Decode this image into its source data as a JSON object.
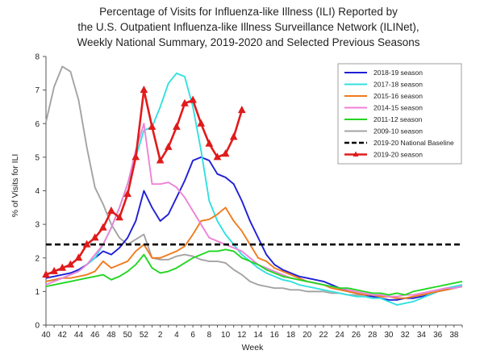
{
  "chart_data": {
    "type": "line",
    "title_lines": [
      "Percentage of Visits for Influenza-like Illness (ILI) Reported by",
      "the U.S. Outpatient Influenza-like Illness Surveillance Network (ILINet),",
      "Weekly National Summary, 2019-2020 and Selected Previous Seasons"
    ],
    "xlabel": "Week",
    "ylabel": "% of Visits for ILI",
    "ylim": [
      0,
      8
    ],
    "yticks": [
      "0",
      "1",
      "2",
      "3",
      "4",
      "5",
      "6",
      "7",
      "8"
    ],
    "x_categories": [
      "40",
      "41",
      "42",
      "43",
      "44",
      "45",
      "46",
      "47",
      "48",
      "49",
      "50",
      "51",
      "52",
      "1",
      "2",
      "3",
      "4",
      "5",
      "6",
      "7",
      "8",
      "9",
      "10",
      "11",
      "12",
      "13",
      "14",
      "15",
      "16",
      "17",
      "18",
      "19",
      "20",
      "21",
      "22",
      "23",
      "24",
      "25",
      "26",
      "27",
      "28",
      "29",
      "30",
      "31",
      "32",
      "33",
      "34",
      "35",
      "36",
      "37",
      "38",
      "39"
    ],
    "xtick_labels": [
      "40",
      "42",
      "44",
      "46",
      "48",
      "50",
      "52",
      "2",
      "4",
      "6",
      "8",
      "10",
      "12",
      "14",
      "16",
      "18",
      "20",
      "22",
      "24",
      "26",
      "28",
      "30",
      "32",
      "34",
      "36",
      "38"
    ],
    "legend_position": "top-right",
    "grid": false,
    "series": [
      {
        "name": "2018-19 season",
        "color": "#1f1fd6",
        "style": "solid",
        "values": [
          1.4,
          1.45,
          1.5,
          1.55,
          1.65,
          1.8,
          2.0,
          2.2,
          2.1,
          2.3,
          2.6,
          3.1,
          4.0,
          3.5,
          3.1,
          3.3,
          3.8,
          4.3,
          4.9,
          5.0,
          4.9,
          4.5,
          4.4,
          4.2,
          3.7,
          3.1,
          2.6,
          2.1,
          1.8,
          1.65,
          1.55,
          1.45,
          1.4,
          1.35,
          1.3,
          1.2,
          1.1,
          1.0,
          0.95,
          0.9,
          0.85,
          0.8,
          0.75,
          0.75,
          0.8,
          0.8,
          0.85,
          0.9,
          1.0,
          1.05,
          1.1,
          1.15
        ]
      },
      {
        "name": "2017-18 season",
        "color": "#33e0e0",
        "style": "solid",
        "values": [
          1.3,
          1.35,
          1.4,
          1.5,
          1.6,
          1.8,
          2.0,
          2.4,
          2.9,
          3.5,
          4.2,
          5.0,
          5.8,
          5.9,
          6.5,
          7.2,
          7.5,
          7.4,
          6.5,
          5.2,
          3.7,
          3.1,
          2.7,
          2.4,
          2.1,
          1.9,
          1.7,
          1.55,
          1.45,
          1.35,
          1.3,
          1.2,
          1.15,
          1.1,
          1.05,
          1.0,
          0.95,
          0.9,
          0.85,
          0.85,
          0.8,
          0.8,
          0.7,
          0.6,
          0.65,
          0.7,
          0.8,
          0.9,
          1.0,
          1.1,
          1.15,
          1.2
        ]
      },
      {
        "name": "2015-16 season",
        "color": "#f07b1c",
        "style": "solid",
        "values": [
          1.3,
          1.35,
          1.4,
          1.4,
          1.45,
          1.5,
          1.6,
          1.9,
          1.7,
          1.8,
          1.9,
          2.2,
          2.4,
          2.0,
          2.0,
          2.1,
          2.2,
          2.35,
          2.7,
          3.1,
          3.15,
          3.3,
          3.5,
          3.1,
          2.8,
          2.4,
          2.0,
          1.9,
          1.7,
          1.6,
          1.5,
          1.4,
          1.3,
          1.25,
          1.2,
          1.1,
          1.05,
          1.0,
          0.95,
          0.9,
          0.9,
          0.85,
          0.85,
          0.8,
          0.8,
          0.85,
          0.9,
          0.95,
          1.0,
          1.05,
          1.1,
          1.15
        ]
      },
      {
        "name": "2014-15 season",
        "color": "#ee82d8",
        "style": "solid",
        "values": [
          1.2,
          1.3,
          1.4,
          1.5,
          1.6,
          1.8,
          2.1,
          2.4,
          2.9,
          3.5,
          4.2,
          5.2,
          6.0,
          4.2,
          4.2,
          4.25,
          4.1,
          3.8,
          3.4,
          3.0,
          2.6,
          2.5,
          2.4,
          2.3,
          2.2,
          2.0,
          1.8,
          1.7,
          1.6,
          1.5,
          1.4,
          1.35,
          1.3,
          1.25,
          1.2,
          1.15,
          1.1,
          1.05,
          1.0,
          0.95,
          0.9,
          0.9,
          0.85,
          0.85,
          0.9,
          0.9,
          0.95,
          1.0,
          1.05,
          1.1,
          1.1,
          1.15
        ]
      },
      {
        "name": "2011-12 season",
        "color": "#22d622",
        "style": "solid",
        "values": [
          1.15,
          1.2,
          1.25,
          1.3,
          1.35,
          1.4,
          1.45,
          1.5,
          1.35,
          1.45,
          1.6,
          1.8,
          2.1,
          1.7,
          1.55,
          1.6,
          1.7,
          1.85,
          2.0,
          2.1,
          2.2,
          2.2,
          2.25,
          2.2,
          2.0,
          1.9,
          1.8,
          1.65,
          1.55,
          1.45,
          1.4,
          1.35,
          1.3,
          1.25,
          1.2,
          1.15,
          1.1,
          1.1,
          1.05,
          1.0,
          0.95,
          0.95,
          0.9,
          0.95,
          0.9,
          1.0,
          1.05,
          1.1,
          1.15,
          1.2,
          1.25,
          1.3
        ]
      },
      {
        "name": "2009-10 season",
        "color": "#a3a3a3",
        "style": "solid",
        "values": [
          6.05,
          7.1,
          7.7,
          7.55,
          6.7,
          5.3,
          4.1,
          3.6,
          3.0,
          2.6,
          2.4,
          2.55,
          2.7,
          2.0,
          1.95,
          1.95,
          2.05,
          2.1,
          2.05,
          1.95,
          1.9,
          1.9,
          1.85,
          1.65,
          1.5,
          1.3,
          1.2,
          1.15,
          1.1,
          1.1,
          1.05,
          1.05,
          1.0,
          1.0,
          1.0,
          0.95,
          0.95,
          0.9,
          0.9,
          0.9,
          0.85,
          0.85,
          0.85,
          0.8,
          0.8,
          0.85,
          0.9,
          0.95,
          1.0,
          1.05,
          1.1,
          1.15
        ]
      },
      {
        "name": "2019-20 National Baseline",
        "color": "#000000",
        "style": "dashed",
        "values": [
          2.4,
          2.4,
          2.4,
          2.4,
          2.4,
          2.4,
          2.4,
          2.4,
          2.4,
          2.4,
          2.4,
          2.4,
          2.4,
          2.4,
          2.4,
          2.4,
          2.4,
          2.4,
          2.4,
          2.4,
          2.4,
          2.4,
          2.4,
          2.4,
          2.4,
          2.4,
          2.4,
          2.4,
          2.4,
          2.4,
          2.4,
          2.4,
          2.4,
          2.4,
          2.4,
          2.4,
          2.4,
          2.4,
          2.4,
          2.4,
          2.4,
          2.4,
          2.4,
          2.4,
          2.4,
          2.4,
          2.4,
          2.4,
          2.4,
          2.4,
          2.4,
          2.4
        ]
      },
      {
        "name": "2019-20 season",
        "color": "#e01b1b",
        "style": "solid-triangle-markers",
        "values": [
          1.5,
          1.6,
          1.7,
          1.8,
          2.0,
          2.4,
          2.6,
          2.9,
          3.4,
          3.2,
          3.9,
          5.0,
          7.0,
          5.9,
          4.9,
          5.3,
          5.9,
          6.6,
          6.7,
          6.0,
          5.4,
          5.0,
          5.1,
          5.6,
          6.4
        ]
      }
    ]
  }
}
